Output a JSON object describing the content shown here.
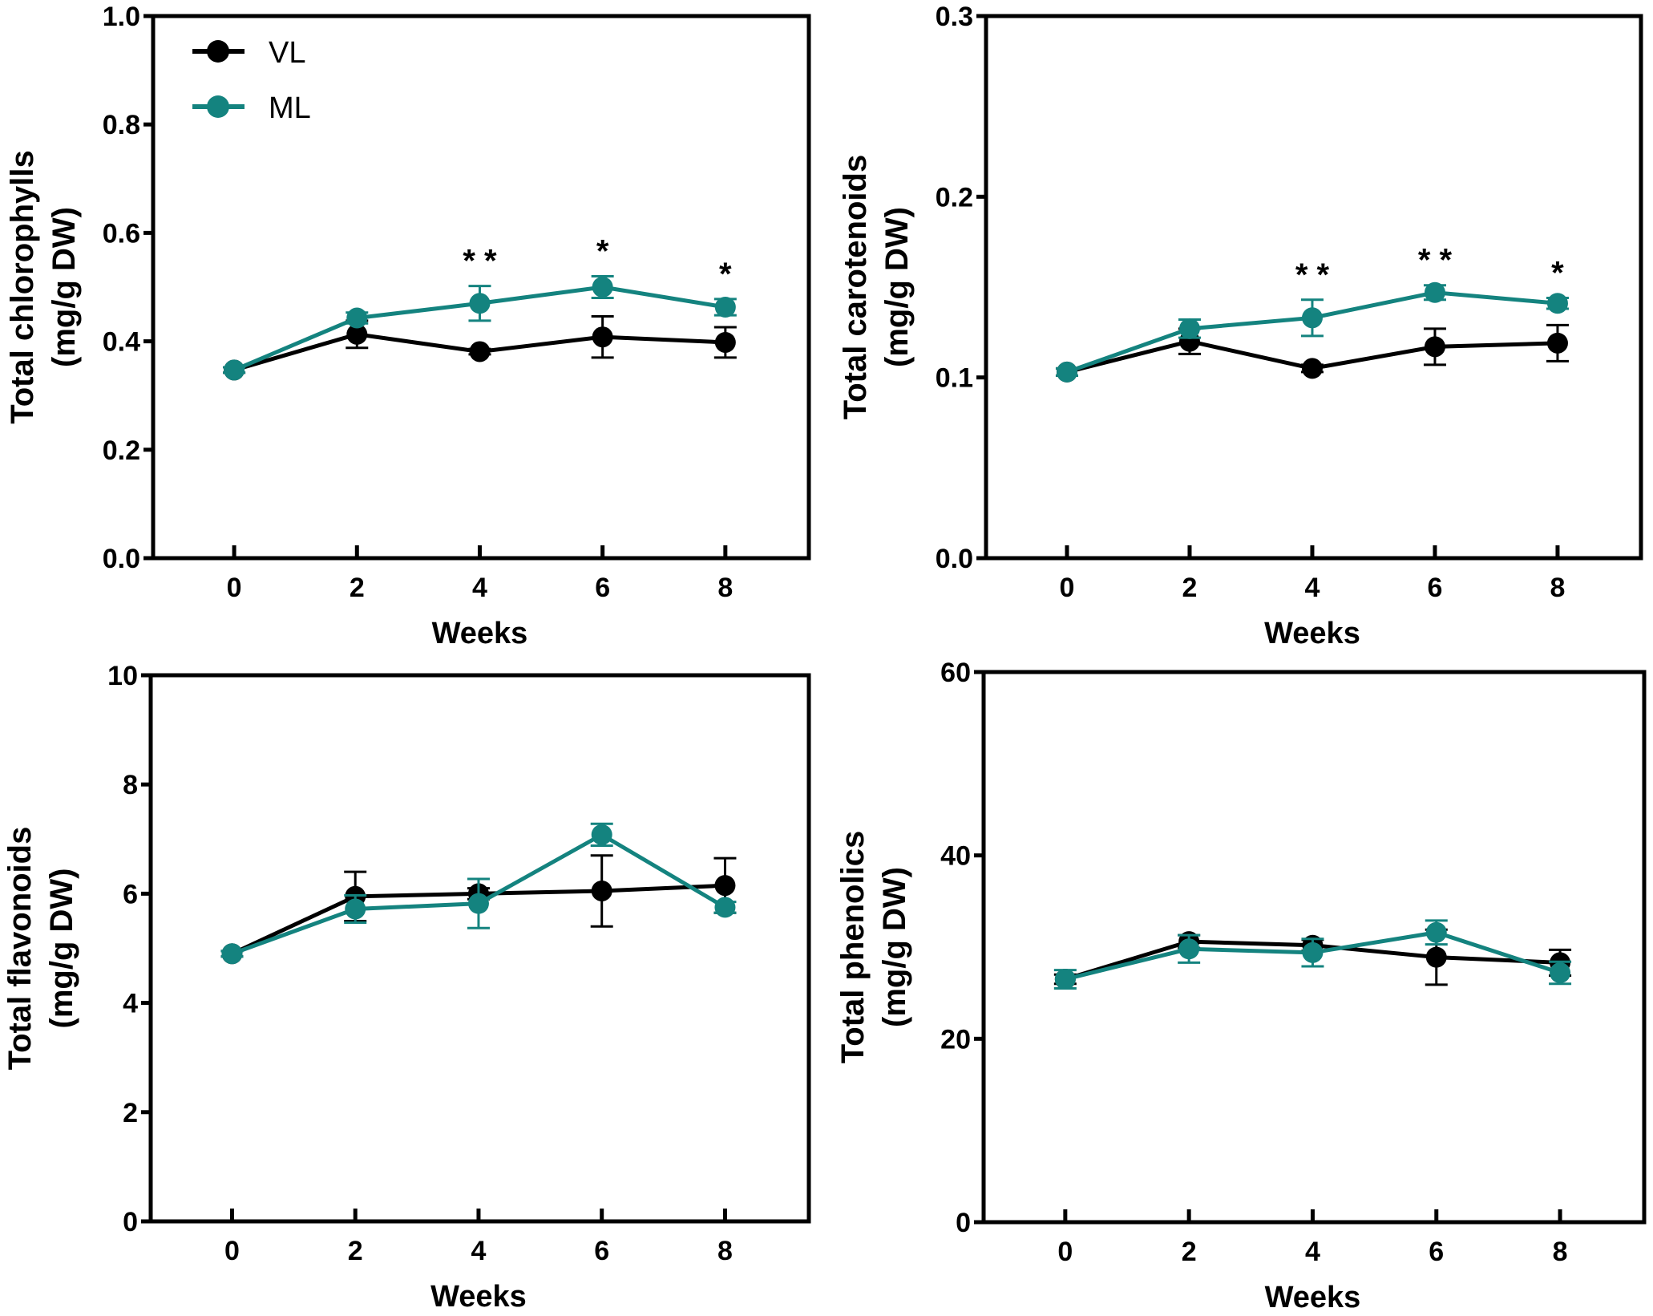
{
  "colors": {
    "VL": "#000000",
    "ML": "#14837f"
  },
  "legend": {
    "placement": "top-left of first panel",
    "items": [
      {
        "name": "VL",
        "color": "#000000"
      },
      {
        "name": "ML",
        "color": "#14837f"
      }
    ]
  },
  "chart_data": [
    {
      "type": "line",
      "xlabel": "Weeks",
      "ylabel": [
        "Total chlorophylls",
        "(mg/g DW)"
      ],
      "x": [
        0,
        2,
        4,
        6,
        8
      ],
      "xticks": [
        "0",
        "2",
        "4",
        "6",
        "8"
      ],
      "ylim": [
        0,
        1.0
      ],
      "yticks": [
        "0.0",
        "0.2",
        "0.4",
        "0.6",
        "0.8",
        "1.0"
      ],
      "series": [
        {
          "name": "VL",
          "values": [
            0.347,
            0.413,
            0.381,
            0.408,
            0.398
          ],
          "errors": [
            0.005,
            0.025,
            0.005,
            0.038,
            0.028
          ]
        },
        {
          "name": "ML",
          "values": [
            0.347,
            0.443,
            0.47,
            0.5,
            0.463
          ],
          "errors": [
            0.005,
            0.01,
            0.032,
            0.02,
            0.015
          ]
        }
      ],
      "annotations": [
        {
          "x": 4,
          "text": "* *"
        },
        {
          "x": 6,
          "text": "*"
        },
        {
          "x": 8,
          "text": "*"
        }
      ]
    },
    {
      "type": "line",
      "xlabel": "Weeks",
      "ylabel": [
        "Total carotenoids",
        "(mg/g DW)"
      ],
      "x": [
        0,
        2,
        4,
        6,
        8
      ],
      "xticks": [
        "0",
        "2",
        "4",
        "6",
        "8"
      ],
      "ylim": [
        0,
        0.3
      ],
      "yticks": [
        "0.0",
        "0.1",
        "0.2",
        "0.3"
      ],
      "series": [
        {
          "name": "VL",
          "values": [
            0.103,
            0.12,
            0.105,
            0.117,
            0.119
          ],
          "errors": [
            0.002,
            0.007,
            0.002,
            0.01,
            0.01
          ]
        },
        {
          "name": "ML",
          "values": [
            0.103,
            0.127,
            0.133,
            0.147,
            0.141
          ],
          "errors": [
            0.002,
            0.005,
            0.01,
            0.004,
            0.003
          ]
        }
      ],
      "annotations": [
        {
          "x": 4,
          "text": "* *"
        },
        {
          "x": 6,
          "text": "* *"
        },
        {
          "x": 8,
          "text": "*"
        }
      ]
    },
    {
      "type": "line",
      "xlabel": "Weeks",
      "ylabel": [
        "Total flavonoids",
        "(mg/g DW)"
      ],
      "x": [
        0,
        2,
        4,
        6,
        8
      ],
      "xticks": [
        "0",
        "2",
        "4",
        "6",
        "8"
      ],
      "ylim": [
        0,
        10
      ],
      "yticks": [
        "0",
        "2",
        "4",
        "6",
        "8",
        "10"
      ],
      "series": [
        {
          "name": "VL",
          "values": [
            4.9,
            5.95,
            6.0,
            6.05,
            6.15
          ],
          "errors": [
            0.05,
            0.45,
            0.1,
            0.65,
            0.5
          ]
        },
        {
          "name": "ML",
          "values": [
            4.9,
            5.72,
            5.82,
            7.08,
            5.75
          ],
          "errors": [
            0.05,
            0.25,
            0.45,
            0.2,
            0.1
          ]
        }
      ],
      "annotations": []
    },
    {
      "type": "line",
      "xlabel": "Weeks",
      "ylabel": [
        "Total phenolics",
        "(mg/g DW)"
      ],
      "x": [
        0,
        2,
        4,
        6,
        8
      ],
      "xticks": [
        "0",
        "2",
        "4",
        "6",
        "8"
      ],
      "ylim": [
        0,
        60
      ],
      "yticks": [
        "0",
        "20",
        "40",
        "60"
      ],
      "series": [
        {
          "name": "VL",
          "values": [
            26.5,
            30.6,
            30.2,
            28.9,
            28.3
          ],
          "errors": [
            0.5,
            0.7,
            0.6,
            3.0,
            1.4
          ]
        },
        {
          "name": "ML",
          "values": [
            26.5,
            29.8,
            29.4,
            31.6,
            27.2
          ],
          "errors": [
            1.0,
            1.5,
            1.5,
            1.3,
            1.2
          ]
        }
      ],
      "annotations": []
    }
  ]
}
